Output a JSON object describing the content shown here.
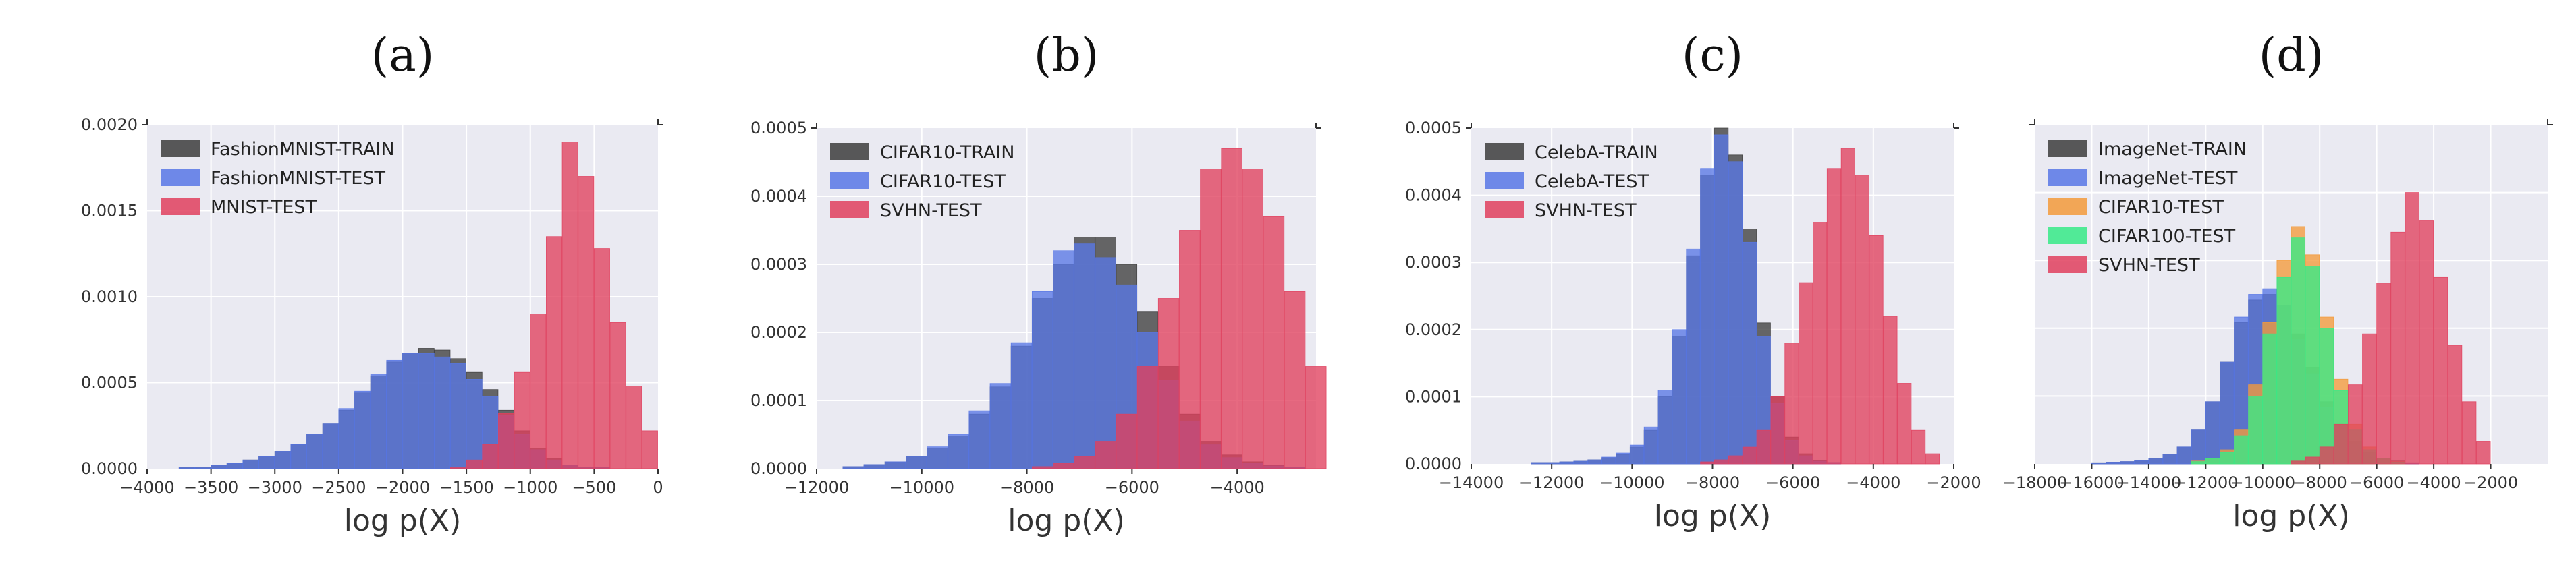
{
  "chart_data": [
    {
      "type": "bar",
      "panel": "(a)",
      "xlabel": "log p(X)",
      "xlim": [
        -4000,
        0
      ],
      "ylim": [
        0,
        0.002
      ],
      "xticks": [
        -4000,
        -3500,
        -3000,
        -2500,
        -2000,
        -1500,
        -1000,
        -500,
        0
      ],
      "yticks": [
        0.0,
        0.0005,
        0.001,
        0.0015,
        0.002
      ],
      "xtick_labels": [
        "−4000",
        "−3500",
        "−3000",
        "−2500",
        "−2000",
        "−1500",
        "−1000",
        "−500",
        "0"
      ],
      "ytick_labels": [
        "0.0000",
        "0.0005",
        "0.0010",
        "0.0015",
        "0.0020"
      ],
      "grid": true,
      "legend_position": "top-left",
      "bin_start": -3750,
      "bin_width": 125,
      "series": [
        {
          "name": "FashionMNIST-TRAIN",
          "color": "#3d3d3d",
          "values": [
            1e-05,
            1e-05,
            2e-05,
            3e-05,
            5e-05,
            7e-05,
            0.0001,
            0.00014,
            0.0002,
            0.00026,
            0.00034,
            0.00044,
            0.00054,
            0.00062,
            0.00067,
            0.0007,
            0.00069,
            0.00064,
            0.00056,
            0.00046,
            0.00034,
            0.00022,
            0.00012,
            6e-05,
            2e-05,
            1e-05,
            1e-05,
            0,
            0,
            0
          ]
        },
        {
          "name": "FashionMNIST-TEST",
          "color": "#5877e6",
          "values": [
            1e-05,
            1e-05,
            2e-05,
            3e-05,
            5e-05,
            7e-05,
            0.0001,
            0.00014,
            0.0002,
            0.00026,
            0.00035,
            0.00045,
            0.00055,
            0.00063,
            0.00067,
            0.00067,
            0.00065,
            0.00061,
            0.00052,
            0.00042,
            0.00031,
            0.0002,
            0.00011,
            5e-05,
            2e-05,
            1e-05,
            1e-05,
            0,
            0,
            0
          ]
        },
        {
          "name": "MNIST-TEST",
          "color": "#e0405e",
          "values": [
            0,
            0,
            0,
            0,
            0,
            0,
            0,
            0,
            0,
            0,
            0,
            0,
            0,
            0,
            0,
            0,
            0,
            1e-05,
            5e-05,
            0.00014,
            0.00032,
            0.00056,
            0.0009,
            0.00135,
            0.0019,
            0.0017,
            0.00128,
            0.00085,
            0.00048,
            0.00022
          ]
        }
      ]
    },
    {
      "type": "bar",
      "panel": "(b)",
      "xlabel": "log p(X)",
      "xlim": [
        -12000,
        -2500
      ],
      "ylim": [
        0,
        0.0005
      ],
      "xticks": [
        -12000,
        -10000,
        -8000,
        -6000,
        -4000
      ],
      "yticks": [
        0.0,
        0.0001,
        0.0002,
        0.0003,
        0.0004,
        0.0005
      ],
      "xtick_labels": [
        "−12000",
        "−10000",
        "−8000",
        "−6000",
        "−4000"
      ],
      "ytick_labels": [
        "0.0000",
        "0.0001",
        "0.0002",
        "0.0003",
        "0.0004",
        "0.0005"
      ],
      "grid": true,
      "legend_position": "top-left",
      "bin_start": -11500,
      "bin_width": 400,
      "series": [
        {
          "name": "CIFAR10-TRAIN",
          "color": "#3d3d3d",
          "values": [
            3e-06,
            6e-06,
            1e-05,
            1.8e-05,
            3e-05,
            4.8e-05,
            8e-05,
            0.00012,
            0.00018,
            0.00025,
            0.0003,
            0.00034,
            0.00034,
            0.0003,
            0.00023,
            0.00015,
            8e-05,
            4e-05,
            2e-05,
            1e-05,
            5e-06,
            2e-06,
            0,
            0
          ]
        },
        {
          "name": "CIFAR10-TEST",
          "color": "#5877e6",
          "values": [
            3e-06,
            6e-06,
            1e-05,
            1.8e-05,
            3.2e-05,
            5e-05,
            8.5e-05,
            0.000125,
            0.000185,
            0.00026,
            0.00032,
            0.00033,
            0.00031,
            0.00027,
            0.0002,
            0.00013,
            7e-05,
            3.5e-05,
            1.6e-05,
            8e-06,
            4e-06,
            2e-06,
            0,
            0
          ]
        },
        {
          "name": "SVHN-TEST",
          "color": "#e0405e",
          "values": [
            0,
            0,
            0,
            0,
            0,
            0,
            0,
            0,
            0,
            3e-06,
            8e-06,
            1.8e-05,
            4e-05,
            8e-05,
            0.00015,
            0.00025,
            0.00035,
            0.00044,
            0.00047,
            0.00044,
            0.00037,
            0.00026,
            0.00015,
            6e-05
          ]
        }
      ]
    },
    {
      "type": "bar",
      "panel": "(c)",
      "xlabel": "log p(X)",
      "xlim": [
        -14000,
        -2000
      ],
      "ylim": [
        0,
        0.0005
      ],
      "xticks": [
        -14000,
        -12000,
        -10000,
        -8000,
        -6000,
        -4000,
        -2000
      ],
      "yticks": [
        0.0,
        0.0001,
        0.0002,
        0.0003,
        0.0004,
        0.0005
      ],
      "xtick_labels": [
        "−14000",
        "−12000",
        "−10000",
        "−8000",
        "−6000",
        "−4000",
        "−2000"
      ],
      "ytick_labels": [
        "0.0000",
        "0.0001",
        "0.0002",
        "0.0003",
        "0.0004",
        "0.0005"
      ],
      "grid": true,
      "legend_position": "top-left",
      "bin_start": -12500,
      "bin_width": 350,
      "series": [
        {
          "name": "CelebA-TRAIN",
          "color": "#3d3d3d",
          "values": [
            2e-06,
            2e-06,
            3e-06,
            4e-06,
            6e-06,
            9e-06,
            1.4e-05,
            2.5e-05,
            5e-05,
            0.0001,
            0.00019,
            0.00031,
            0.00043,
            0.0005,
            0.00046,
            0.00035,
            0.00021,
            0.0001,
            4e-05,
            1.5e-05,
            5e-06,
            2e-06,
            0,
            0,
            0,
            0,
            0,
            0,
            0
          ]
        },
        {
          "name": "CelebA-TEST",
          "color": "#5877e6",
          "values": [
            2e-06,
            2e-06,
            3e-06,
            4e-06,
            6e-06,
            1e-05,
            1.6e-05,
            2.8e-05,
            5.5e-05,
            0.00011,
            0.0002,
            0.00032,
            0.00044,
            0.00049,
            0.00045,
            0.00033,
            0.00019,
            9e-05,
            3.5e-05,
            1.2e-05,
            4e-06,
            2e-06,
            0,
            0,
            0,
            0,
            0,
            0,
            0
          ]
        },
        {
          "name": "SVHN-TEST",
          "color": "#e0405e",
          "values": [
            0,
            0,
            0,
            0,
            0,
            0,
            0,
            0,
            0,
            0,
            0,
            0,
            3e-06,
            6e-06,
            1.2e-05,
            2.5e-05,
            5e-05,
            0.0001,
            0.00018,
            0.00027,
            0.00036,
            0.00044,
            0.00047,
            0.00043,
            0.00034,
            0.00022,
            0.00012,
            5e-05,
            1.5e-05
          ]
        }
      ]
    },
    {
      "type": "bar",
      "panel": "(d)",
      "xlabel": "log p(X)",
      "xlim": [
        -18000,
        0
      ],
      "ylim": [
        0,
        0.0006
      ],
      "xticks": [
        -18000,
        -16000,
        -14000,
        -12000,
        -10000,
        -8000,
        -6000,
        -4000,
        -2000
      ],
      "yticks": [],
      "xtick_labels": [
        "−18000",
        "−16000",
        "−14000",
        "−12000",
        "−10000",
        "−8000",
        "−6000",
        "−4000",
        "−2000"
      ],
      "ytick_labels": [],
      "grid": true,
      "legend_position": "top-left",
      "bin_start": -16000,
      "bin_width": 500,
      "series": [
        {
          "name": "ImageNet-TRAIN",
          "color": "#3d3d3d",
          "values": [
            2e-06,
            3e-06,
            4e-06,
            6e-06,
            1e-05,
            1.7e-05,
            3e-05,
            6e-05,
            0.00011,
            0.00018,
            0.00025,
            0.00029,
            0.0003,
            0.00028,
            0.00023,
            0.00017,
            0.00011,
            7e-05,
            4e-05,
            2e-05,
            1e-05,
            5e-06,
            2e-06,
            0,
            0,
            0,
            0,
            0
          ]
        },
        {
          "name": "ImageNet-TEST",
          "color": "#5877e6",
          "values": [
            2e-06,
            3e-06,
            4e-06,
            6e-06,
            1e-05,
            1.7e-05,
            3e-05,
            6e-05,
            0.00011,
            0.00018,
            0.00026,
            0.0003,
            0.00031,
            0.00028,
            0.00022,
            0.00016,
            0.0001,
            6e-05,
            3.5e-05,
            1.8e-05,
            9e-06,
            4e-06,
            2e-06,
            0,
            0,
            0,
            0,
            0
          ]
        },
        {
          "name": "CIFAR10-TEST",
          "color": "#f39a3b",
          "values": [
            0,
            0,
            0,
            0,
            0,
            0,
            0,
            5e-06,
            1e-05,
            2.5e-05,
            6e-05,
            0.00014,
            0.00025,
            0.00036,
            0.00042,
            0.00037,
            0.00026,
            0.00015,
            7e-05,
            3e-05,
            1e-05,
            4e-06,
            0,
            0,
            0,
            0,
            0,
            0
          ]
        },
        {
          "name": "CIFAR100-TEST",
          "color": "#36ea87",
          "values": [
            0,
            0,
            0,
            0,
            0,
            0,
            0,
            4e-06,
            9e-06,
            2e-05,
            5e-05,
            0.00012,
            0.00023,
            0.00033,
            0.0004,
            0.00035,
            0.00024,
            0.00013,
            6e-05,
            2.5e-05,
            1e-05,
            3e-06,
            0,
            0,
            0,
            0,
            0,
            0
          ]
        },
        {
          "name": "SVHN-TEST",
          "color": "#e0405e",
          "values": [
            0,
            0,
            0,
            0,
            0,
            0,
            0,
            0,
            0,
            0,
            0,
            0,
            0,
            0,
            5e-06,
            1.2e-05,
            3e-05,
            7e-05,
            0.00014,
            0.00023,
            0.00032,
            0.00041,
            0.00048,
            0.00043,
            0.00033,
            0.00021,
            0.00011,
            4e-05
          ]
        }
      ]
    }
  ]
}
